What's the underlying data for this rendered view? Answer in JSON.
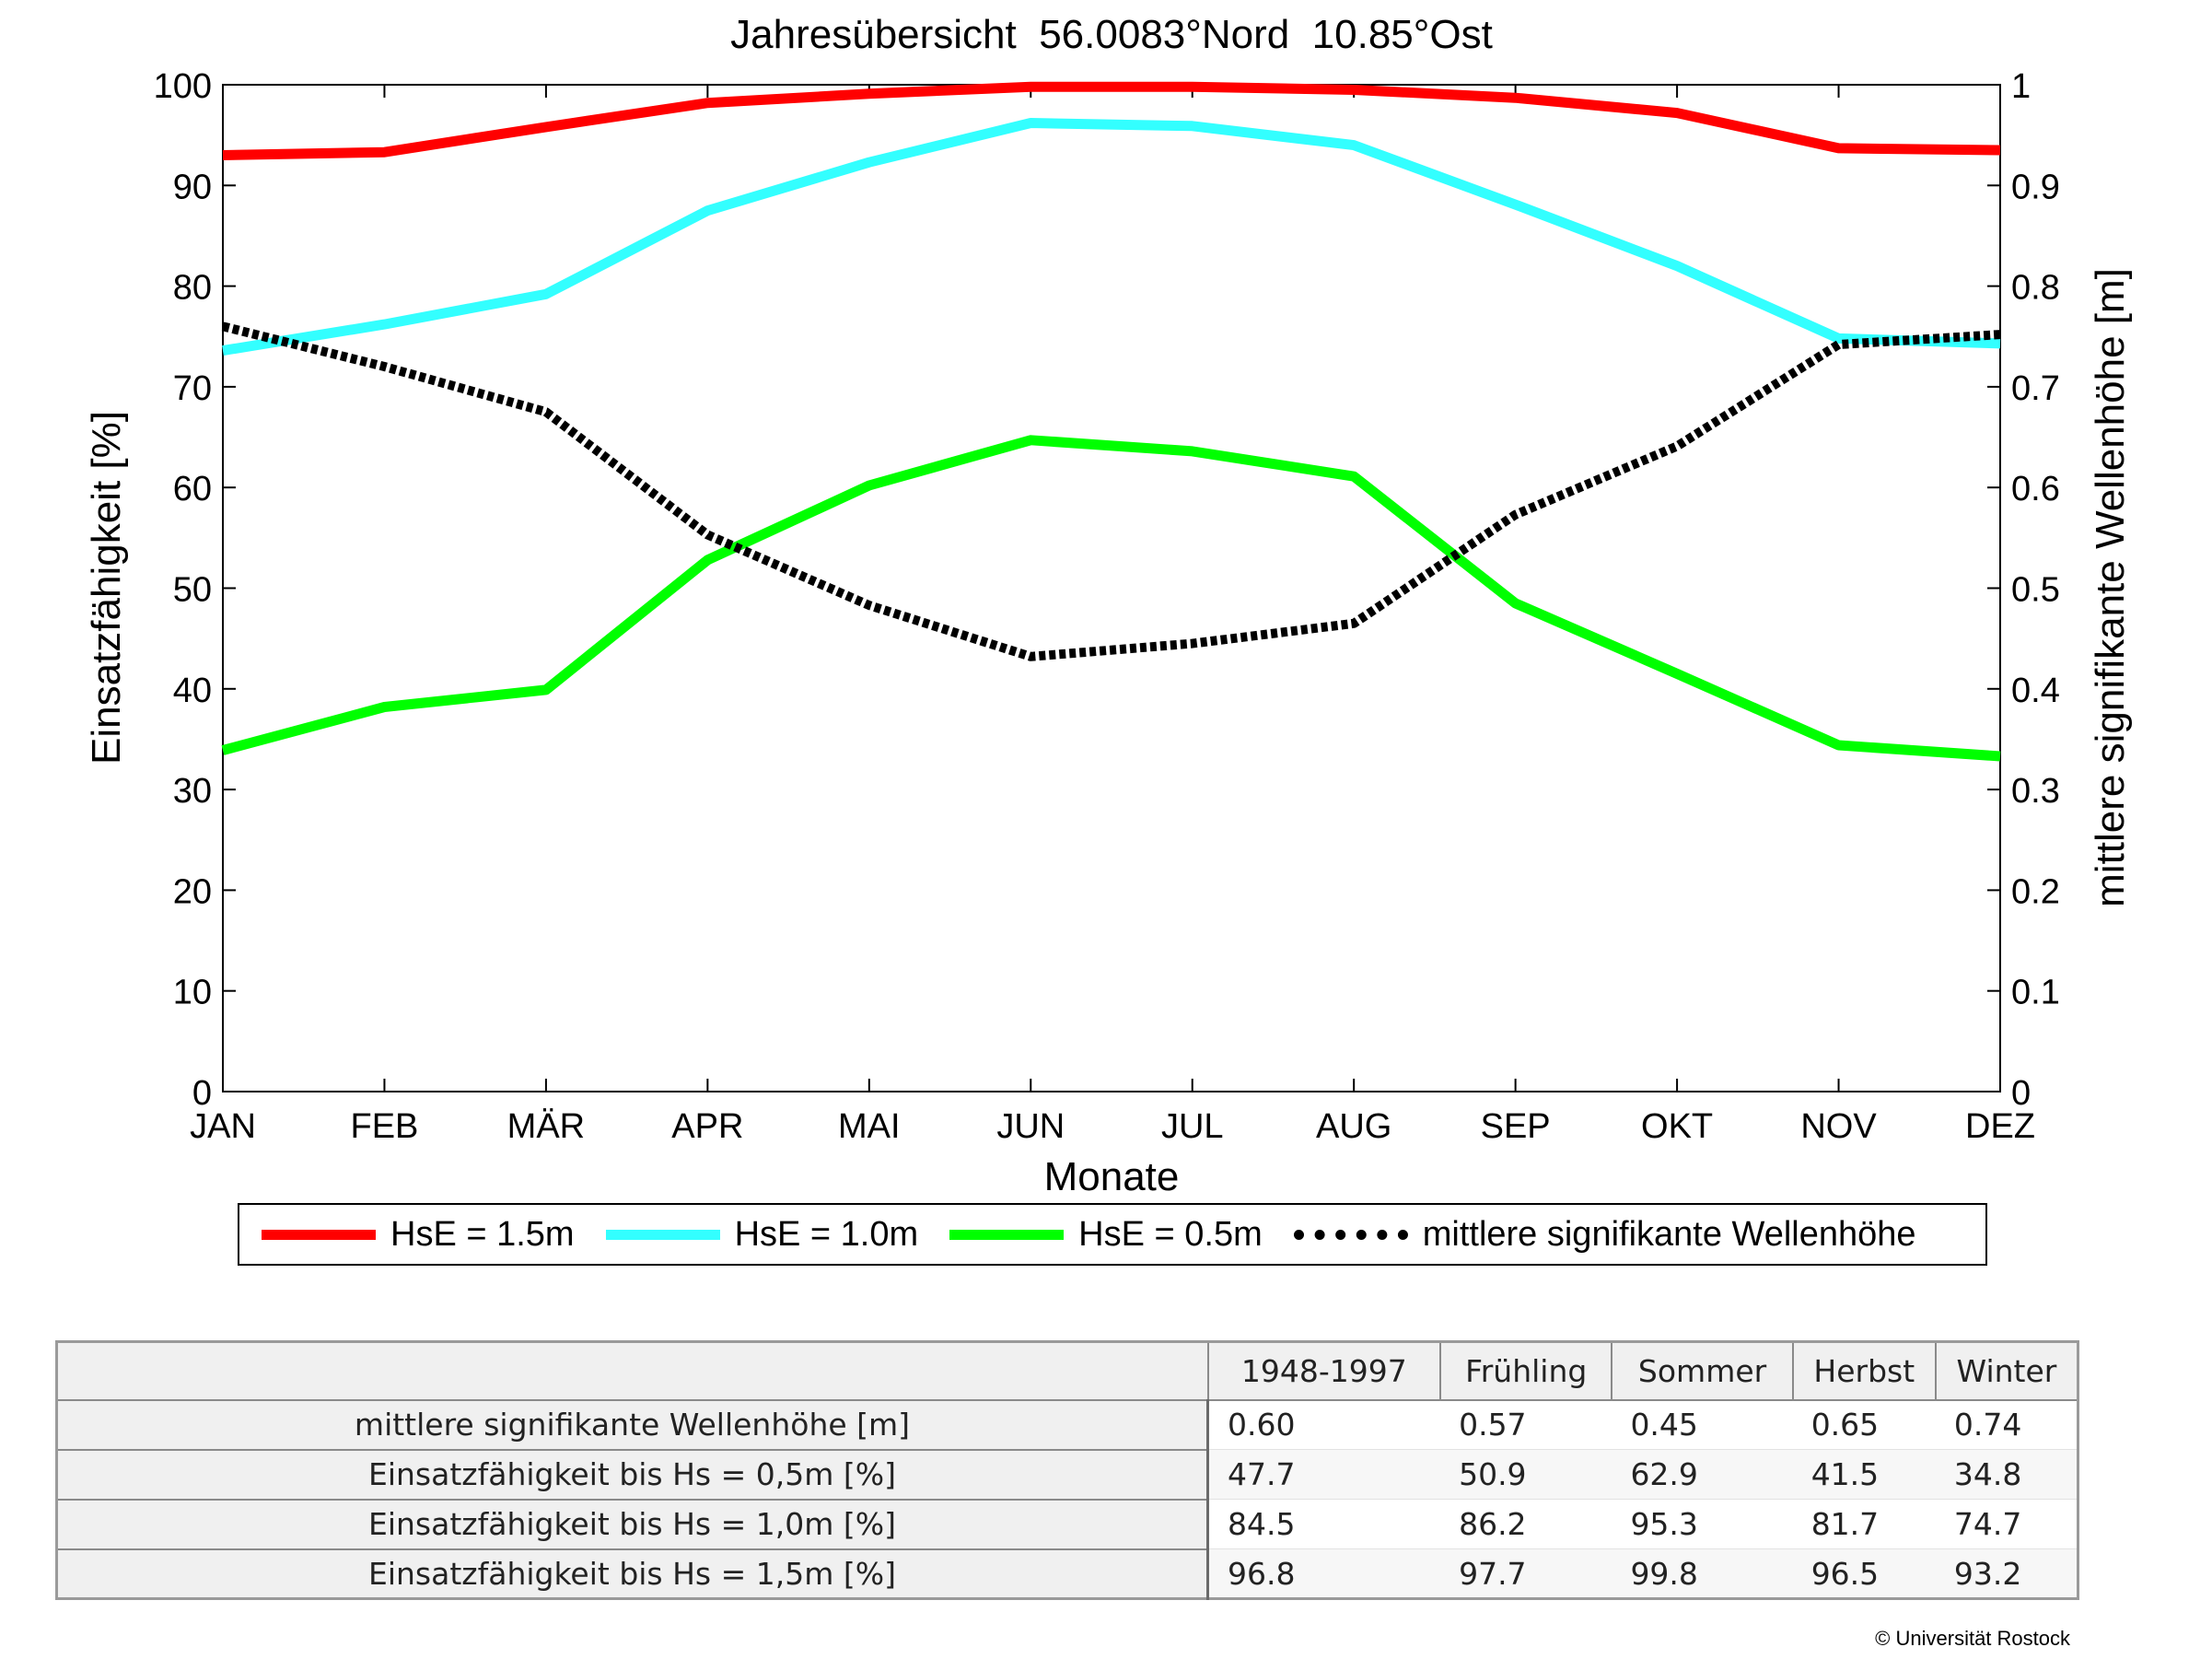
{
  "chart_data": {
    "type": "line",
    "title": "Jahresübersicht  56.0083°Nord  10.85°Ost",
    "xlabel": "Monate",
    "ylabel": "Einsatzfähigkeit [%]",
    "y2label": "mittlere signifikante Wellenhöhe [m]",
    "categories": [
      "JAN",
      "FEB",
      "MÄR",
      "APR",
      "MAI",
      "JUN",
      "JUL",
      "AUG",
      "SEP",
      "OKT",
      "NOV",
      "DEZ"
    ],
    "ylim": [
      0,
      100
    ],
    "yticks": [
      "0",
      "10",
      "20",
      "30",
      "40",
      "50",
      "60",
      "70",
      "80",
      "90",
      "100"
    ],
    "y2lim": [
      0,
      1
    ],
    "y2ticks": [
      "0",
      "0.1",
      "0.2",
      "0.3",
      "0.4",
      "0.5",
      "0.6",
      "0.7",
      "0.8",
      "0.9",
      "1"
    ],
    "legend_position": "bottom",
    "series": [
      {
        "name": "HsE = 1.5m",
        "axis": "left",
        "color": "#ff0000",
        "style": "solid",
        "values": [
          93,
          93.3,
          95.8,
          98.2,
          99.1,
          99.8,
          99.8,
          99.5,
          98.7,
          97.2,
          93.7,
          93.5
        ]
      },
      {
        "name": "HsE = 1.0m",
        "axis": "left",
        "color": "#33ffff",
        "style": "solid",
        "values": [
          73.6,
          76.2,
          79.2,
          87.5,
          92.3,
          96.2,
          95.9,
          94,
          88.1,
          82,
          74.8,
          74.3
        ]
      },
      {
        "name": "HsE = 0.5m",
        "axis": "left",
        "color": "#00ff00",
        "style": "solid",
        "values": [
          33.9,
          38.2,
          39.9,
          52.8,
          60.2,
          64.7,
          63.6,
          61.1,
          48.5,
          41.5,
          34.4,
          33.3
        ]
      },
      {
        "name": "mittlere signifikante Wellenhöhe",
        "axis": "right",
        "color": "#000000",
        "style": "dotted",
        "values": [
          0.76,
          0.72,
          0.675,
          0.553,
          0.483,
          0.432,
          0.445,
          0.465,
          0.573,
          0.641,
          0.742,
          0.752
        ]
      }
    ]
  },
  "table": {
    "columns": [
      "1948-1997",
      "Frühling",
      "Sommer",
      "Herbst",
      "Winter"
    ],
    "rows": [
      {
        "label": "mittlere signifikante Wellenhöhe [m]",
        "values": [
          "0.60",
          "0.57",
          "0.45",
          "0.65",
          "0.74"
        ]
      },
      {
        "label": "Einsatzfähigkeit bis Hs = 0,5m [%]",
        "values": [
          "47.7",
          "50.9",
          "62.9",
          "41.5",
          "34.8"
        ]
      },
      {
        "label": "Einsatzfähigkeit bis Hs = 1,0m [%]",
        "values": [
          "84.5",
          "86.2",
          "95.3",
          "81.7",
          "74.7"
        ]
      },
      {
        "label": "Einsatzfähigkeit bis Hs = 1,5m [%]",
        "values": [
          "96.8",
          "97.7",
          "99.8",
          "96.5",
          "93.2"
        ]
      }
    ]
  },
  "copyright": "© Universität Rostock"
}
